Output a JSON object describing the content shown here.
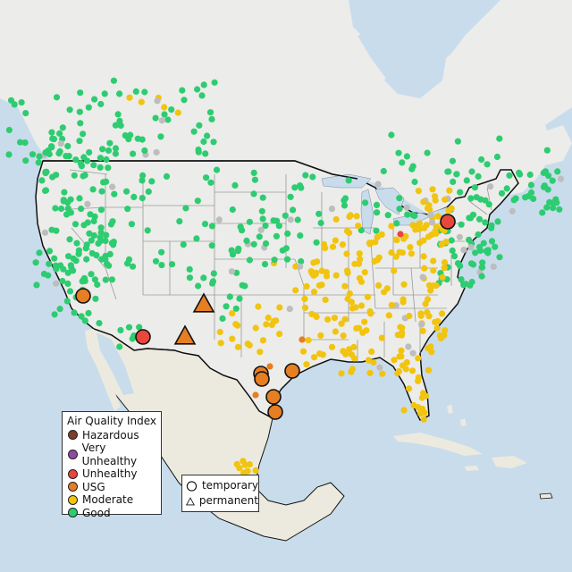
{
  "legend_aqi": {
    "title": "Air Quality Index",
    "items": [
      {
        "label": "Hazardous",
        "color": "#7e3d2b"
      },
      {
        "label": "Very Unhealthy",
        "color": "#8f4ba3"
      },
      {
        "label": "Unhealthy",
        "color": "#e8473c"
      },
      {
        "label": "USG",
        "color": "#e67e22"
      },
      {
        "label": "Moderate",
        "color": "#f1c40f"
      },
      {
        "label": "Good",
        "color": "#2ecc71"
      }
    ]
  },
  "legend_shape": {
    "items": [
      {
        "label": "temporary",
        "shape": "circle"
      },
      {
        "label": "permanent",
        "shape": "triangle"
      }
    ]
  },
  "colors": {
    "water": "#c9dcec",
    "land": "#ececea",
    "mexico_land": "#eceadf",
    "border": "#111111",
    "state_line": "#9a9a9a",
    "unknown_station": "#bdbdbd"
  },
  "large_markers": [
    {
      "category": "USG",
      "shape": "circle",
      "place": "Southern California"
    },
    {
      "category": "Unhealthy",
      "shape": "circle",
      "place": "Arizona"
    },
    {
      "category": "USG",
      "shape": "triangle",
      "place": "Four Corners"
    },
    {
      "category": "USG",
      "shape": "triangle",
      "place": "New Mexico"
    },
    {
      "category": "USG",
      "shape": "circle",
      "place": "Houston"
    },
    {
      "category": "USG",
      "shape": "circle",
      "place": "Houston"
    },
    {
      "category": "USG",
      "shape": "circle",
      "place": "Southeast Texas"
    },
    {
      "category": "USG",
      "shape": "circle",
      "place": "Corpus Christi"
    },
    {
      "category": "USG",
      "shape": "circle",
      "place": "South Texas"
    },
    {
      "category": "Unhealthy",
      "shape": "circle",
      "place": "Lake Ontario shore"
    }
  ]
}
